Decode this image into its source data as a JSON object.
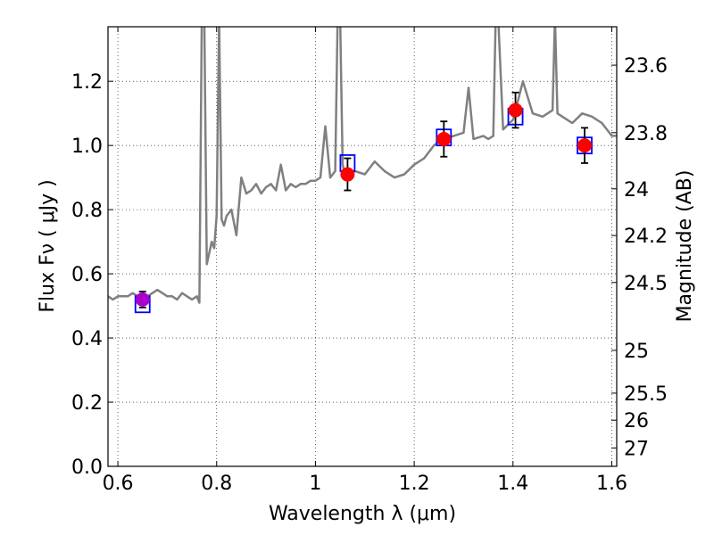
{
  "chart_data": {
    "type": "scatter",
    "xlabel": "Wavelength  λ (μm)",
    "ylabel": "Flux  Fν ( μJy )",
    "ylabel_right": "Magnitude (AB)",
    "xlim": [
      0.58,
      1.61
    ],
    "ylim": [
      0.0,
      1.37
    ],
    "grid": true,
    "x_ticks": [
      {
        "value": 0.6,
        "label": "0.6"
      },
      {
        "value": 0.8,
        "label": "0.8"
      },
      {
        "value": 1.0,
        "label": "1"
      },
      {
        "value": 1.2,
        "label": "1.2"
      },
      {
        "value": 1.4,
        "label": "1.4"
      },
      {
        "value": 1.6,
        "label": "1.6"
      }
    ],
    "y_ticks": [
      {
        "value": 0.0,
        "label": "0.0"
      },
      {
        "value": 0.2,
        "label": "0.2"
      },
      {
        "value": 0.4,
        "label": "0.4"
      },
      {
        "value": 0.6,
        "label": "0.6"
      },
      {
        "value": 0.8,
        "label": "0.8"
      },
      {
        "value": 1.0,
        "label": "1.0"
      },
      {
        "value": 1.2,
        "label": "1.2"
      }
    ],
    "mag_ticks": [
      {
        "flux": 1.2503,
        "label": "23.6"
      },
      {
        "flux": 1.0399,
        "label": "23.8"
      },
      {
        "flux": 0.8649,
        "label": "24"
      },
      {
        "flux": 0.7193,
        "label": "24.2"
      },
      {
        "flux": 0.573,
        "label": "24.5"
      },
      {
        "flux": 0.3615,
        "label": "25"
      },
      {
        "flux": 0.2281,
        "label": "25.5"
      },
      {
        "flux": 0.1439,
        "label": "26"
      },
      {
        "flux": 0.0573,
        "label": "27"
      }
    ],
    "series": [
      {
        "kind": "model",
        "color": "#808080",
        "x": [
          0.58,
          0.59,
          0.6,
          0.61,
          0.62,
          0.63,
          0.64,
          0.65,
          0.66,
          0.67,
          0.68,
          0.69,
          0.7,
          0.71,
          0.72,
          0.73,
          0.74,
          0.75,
          0.76,
          0.765,
          0.77,
          0.775,
          0.78,
          0.79,
          0.795,
          0.8,
          0.805,
          0.81,
          0.815,
          0.82,
          0.83,
          0.84,
          0.85,
          0.86,
          0.87,
          0.88,
          0.89,
          0.9,
          0.91,
          0.92,
          0.93,
          0.94,
          0.95,
          0.96,
          0.97,
          0.98,
          0.99,
          1.0,
          1.01,
          1.02,
          1.03,
          1.04,
          1.045,
          1.05,
          1.055,
          1.06,
          1.08,
          1.1,
          1.12,
          1.14,
          1.16,
          1.18,
          1.2,
          1.22,
          1.24,
          1.26,
          1.28,
          1.3,
          1.31,
          1.32,
          1.34,
          1.35,
          1.36,
          1.365,
          1.37,
          1.38,
          1.4,
          1.42,
          1.44,
          1.46,
          1.48,
          1.485,
          1.49,
          1.5,
          1.52,
          1.54,
          1.56,
          1.58,
          1.6,
          1.61
        ],
        "y": [
          0.53,
          0.52,
          0.53,
          0.53,
          0.53,
          0.54,
          0.53,
          0.54,
          0.53,
          0.54,
          0.55,
          0.54,
          0.53,
          0.53,
          0.52,
          0.54,
          0.53,
          0.52,
          0.53,
          0.51,
          1.4,
          1.4,
          0.63,
          0.7,
          0.68,
          0.78,
          1.4,
          0.77,
          0.75,
          0.78,
          0.8,
          0.72,
          0.9,
          0.85,
          0.86,
          0.88,
          0.85,
          0.87,
          0.88,
          0.86,
          0.94,
          0.86,
          0.88,
          0.87,
          0.88,
          0.88,
          0.89,
          0.89,
          0.9,
          1.06,
          0.9,
          0.92,
          1.4,
          1.4,
          0.94,
          0.91,
          0.92,
          0.91,
          0.95,
          0.92,
          0.9,
          0.91,
          0.94,
          0.96,
          1.0,
          1.02,
          1.03,
          1.04,
          1.18,
          1.02,
          1.03,
          1.02,
          1.03,
          1.4,
          1.4,
          1.05,
          1.08,
          1.2,
          1.1,
          1.09,
          1.11,
          1.4,
          1.1,
          1.09,
          1.07,
          1.1,
          1.09,
          1.07,
          1.03,
          1.03
        ]
      },
      {
        "kind": "model-photometry",
        "marker": "open-square",
        "color": "#0000ff",
        "x": [
          0.65,
          1.065,
          1.26,
          1.405,
          1.545
        ],
        "y": [
          0.505,
          0.945,
          1.025,
          1.09,
          1.0
        ]
      },
      {
        "kind": "observed",
        "marker": "filled-circle",
        "colors": [
          "#aa00cc",
          "#ff0000",
          "#ff0000",
          "#ff0000",
          "#ff0000"
        ],
        "x": [
          0.65,
          1.065,
          1.26,
          1.405,
          1.545
        ],
        "y": [
          0.52,
          0.91,
          1.02,
          1.11,
          1.0
        ],
        "yerr": [
          0.025,
          0.05,
          0.055,
          0.055,
          0.055
        ]
      }
    ]
  }
}
